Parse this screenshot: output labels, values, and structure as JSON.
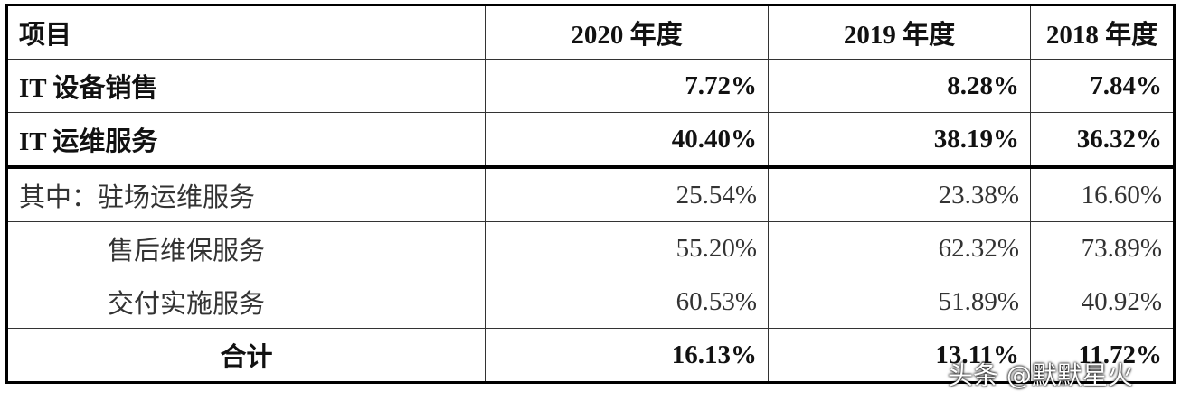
{
  "table": {
    "header": [
      "项目",
      "2020 年度",
      "2019 年度",
      "2018 年度"
    ],
    "rows": [
      [
        "IT 设备销售",
        "7.72%",
        "8.28%",
        "7.84%"
      ],
      [
        "IT 运维服务",
        "40.40%",
        "38.19%",
        "36.32%"
      ],
      [
        "其中：驻场运维服务",
        "25.54%",
        "23.38%",
        "16.60%"
      ],
      [
        "售后维保服务",
        "55.20%",
        "62.32%",
        "73.89%"
      ],
      [
        "交付实施服务",
        "60.53%",
        "51.89%",
        "40.92%"
      ],
      [
        "合计",
        "16.13%",
        "13.11%",
        "11.72%"
      ]
    ]
  },
  "watermark": "头条 @默默星火"
}
